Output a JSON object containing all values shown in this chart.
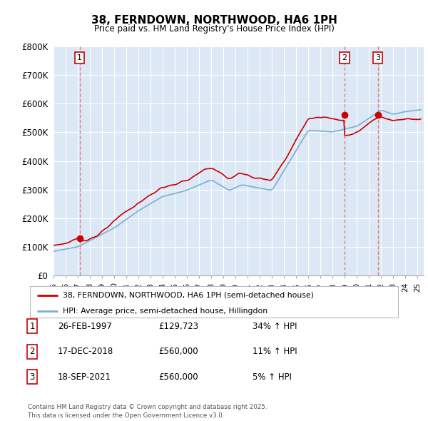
{
  "title": "38, FERNDOWN, NORTHWOOD, HA6 1PH",
  "subtitle": "Price paid vs. HM Land Registry's House Price Index (HPI)",
  "ylim": [
    0,
    800000
  ],
  "yticks": [
    0,
    100000,
    200000,
    300000,
    400000,
    500000,
    600000,
    700000,
    800000
  ],
  "ytick_labels": [
    "£0",
    "£100K",
    "£200K",
    "£300K",
    "£400K",
    "£500K",
    "£600K",
    "£700K",
    "£800K"
  ],
  "xlim_start": 1995.0,
  "xlim_end": 2025.5,
  "hpi_color": "#7bafd4",
  "price_color": "#cc0000",
  "chart_bg_color": "#dce8f5",
  "background_color": "#ffffff",
  "grid_color": "#ffffff",
  "vline_color": "#e08080",
  "legend_label_price": "38, FERNDOWN, NORTHWOOD, HA6 1PH (semi-detached house)",
  "legend_label_hpi": "HPI: Average price, semi-detached house, Hillingdon",
  "transaction1_date": "26-FEB-1997",
  "transaction1_price": "£129,723",
  "transaction1_hpi": "34% ↑ HPI",
  "transaction1_year": 1997.15,
  "transaction1_value": 129723,
  "transaction2_date": "17-DEC-2018",
  "transaction2_price": "£560,000",
  "transaction2_hpi": "11% ↑ HPI",
  "transaction2_year": 2018.96,
  "transaction2_value": 560000,
  "transaction3_date": "18-SEP-2021",
  "transaction3_price": "£560,000",
  "transaction3_hpi": "5% ↑ HPI",
  "transaction3_year": 2021.71,
  "transaction3_value": 560000,
  "footer": "Contains HM Land Registry data © Crown copyright and database right 2025.\nThis data is licensed under the Open Government Licence v3.0."
}
